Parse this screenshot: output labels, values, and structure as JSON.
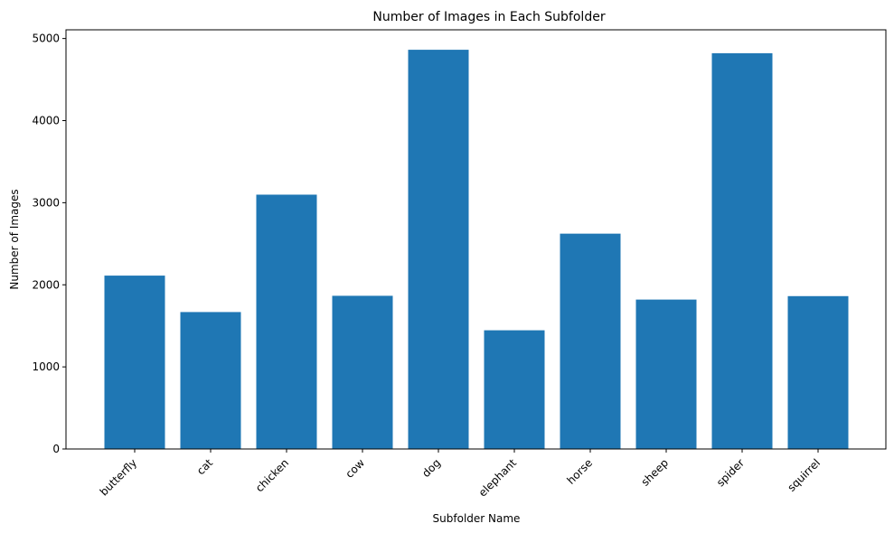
{
  "chart_data": {
    "type": "bar",
    "title": "Number of Images in Each Subfolder",
    "xlabel": "Subfolder Name",
    "ylabel": "Number of Images",
    "categories": [
      "butterfly",
      "cat",
      "chicken",
      "cow",
      "dog",
      "elephant",
      "horse",
      "sheep",
      "spider",
      "squirrel"
    ],
    "values": [
      2112,
      1668,
      3098,
      1866,
      4863,
      1446,
      2623,
      1820,
      4821,
      1862
    ],
    "yticks": [
      0,
      1000,
      2000,
      3000,
      4000,
      5000
    ],
    "ylim": [
      0,
      5106
    ],
    "bar_color": "#1f77b4",
    "grid": false,
    "legend": false
  }
}
